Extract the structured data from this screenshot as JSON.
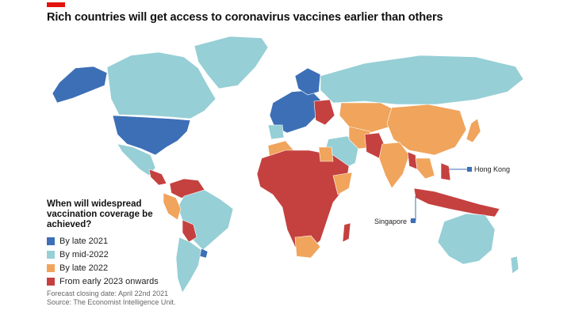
{
  "title": "Rich countries will get access to coronavirus vaccines earlier than others",
  "accent_color": "#e3120b",
  "legend": {
    "heading": "When will widespread vaccination coverage be achieved?",
    "items": [
      {
        "label": "By late 2021",
        "color": "#3d6fb6"
      },
      {
        "label": "By mid-2022",
        "color": "#96cfd6"
      },
      {
        "label": "By late 2022",
        "color": "#f0a45c"
      },
      {
        "label": "From early 2023 onwards",
        "color": "#c4413f"
      }
    ]
  },
  "notes": {
    "forecast": "Forecast closing date: April 22nd 2021",
    "source": "Source: The Economist Intelligence Unit."
  },
  "callouts": {
    "hong_kong": "Hong Kong",
    "singapore": "Singapore"
  }
}
